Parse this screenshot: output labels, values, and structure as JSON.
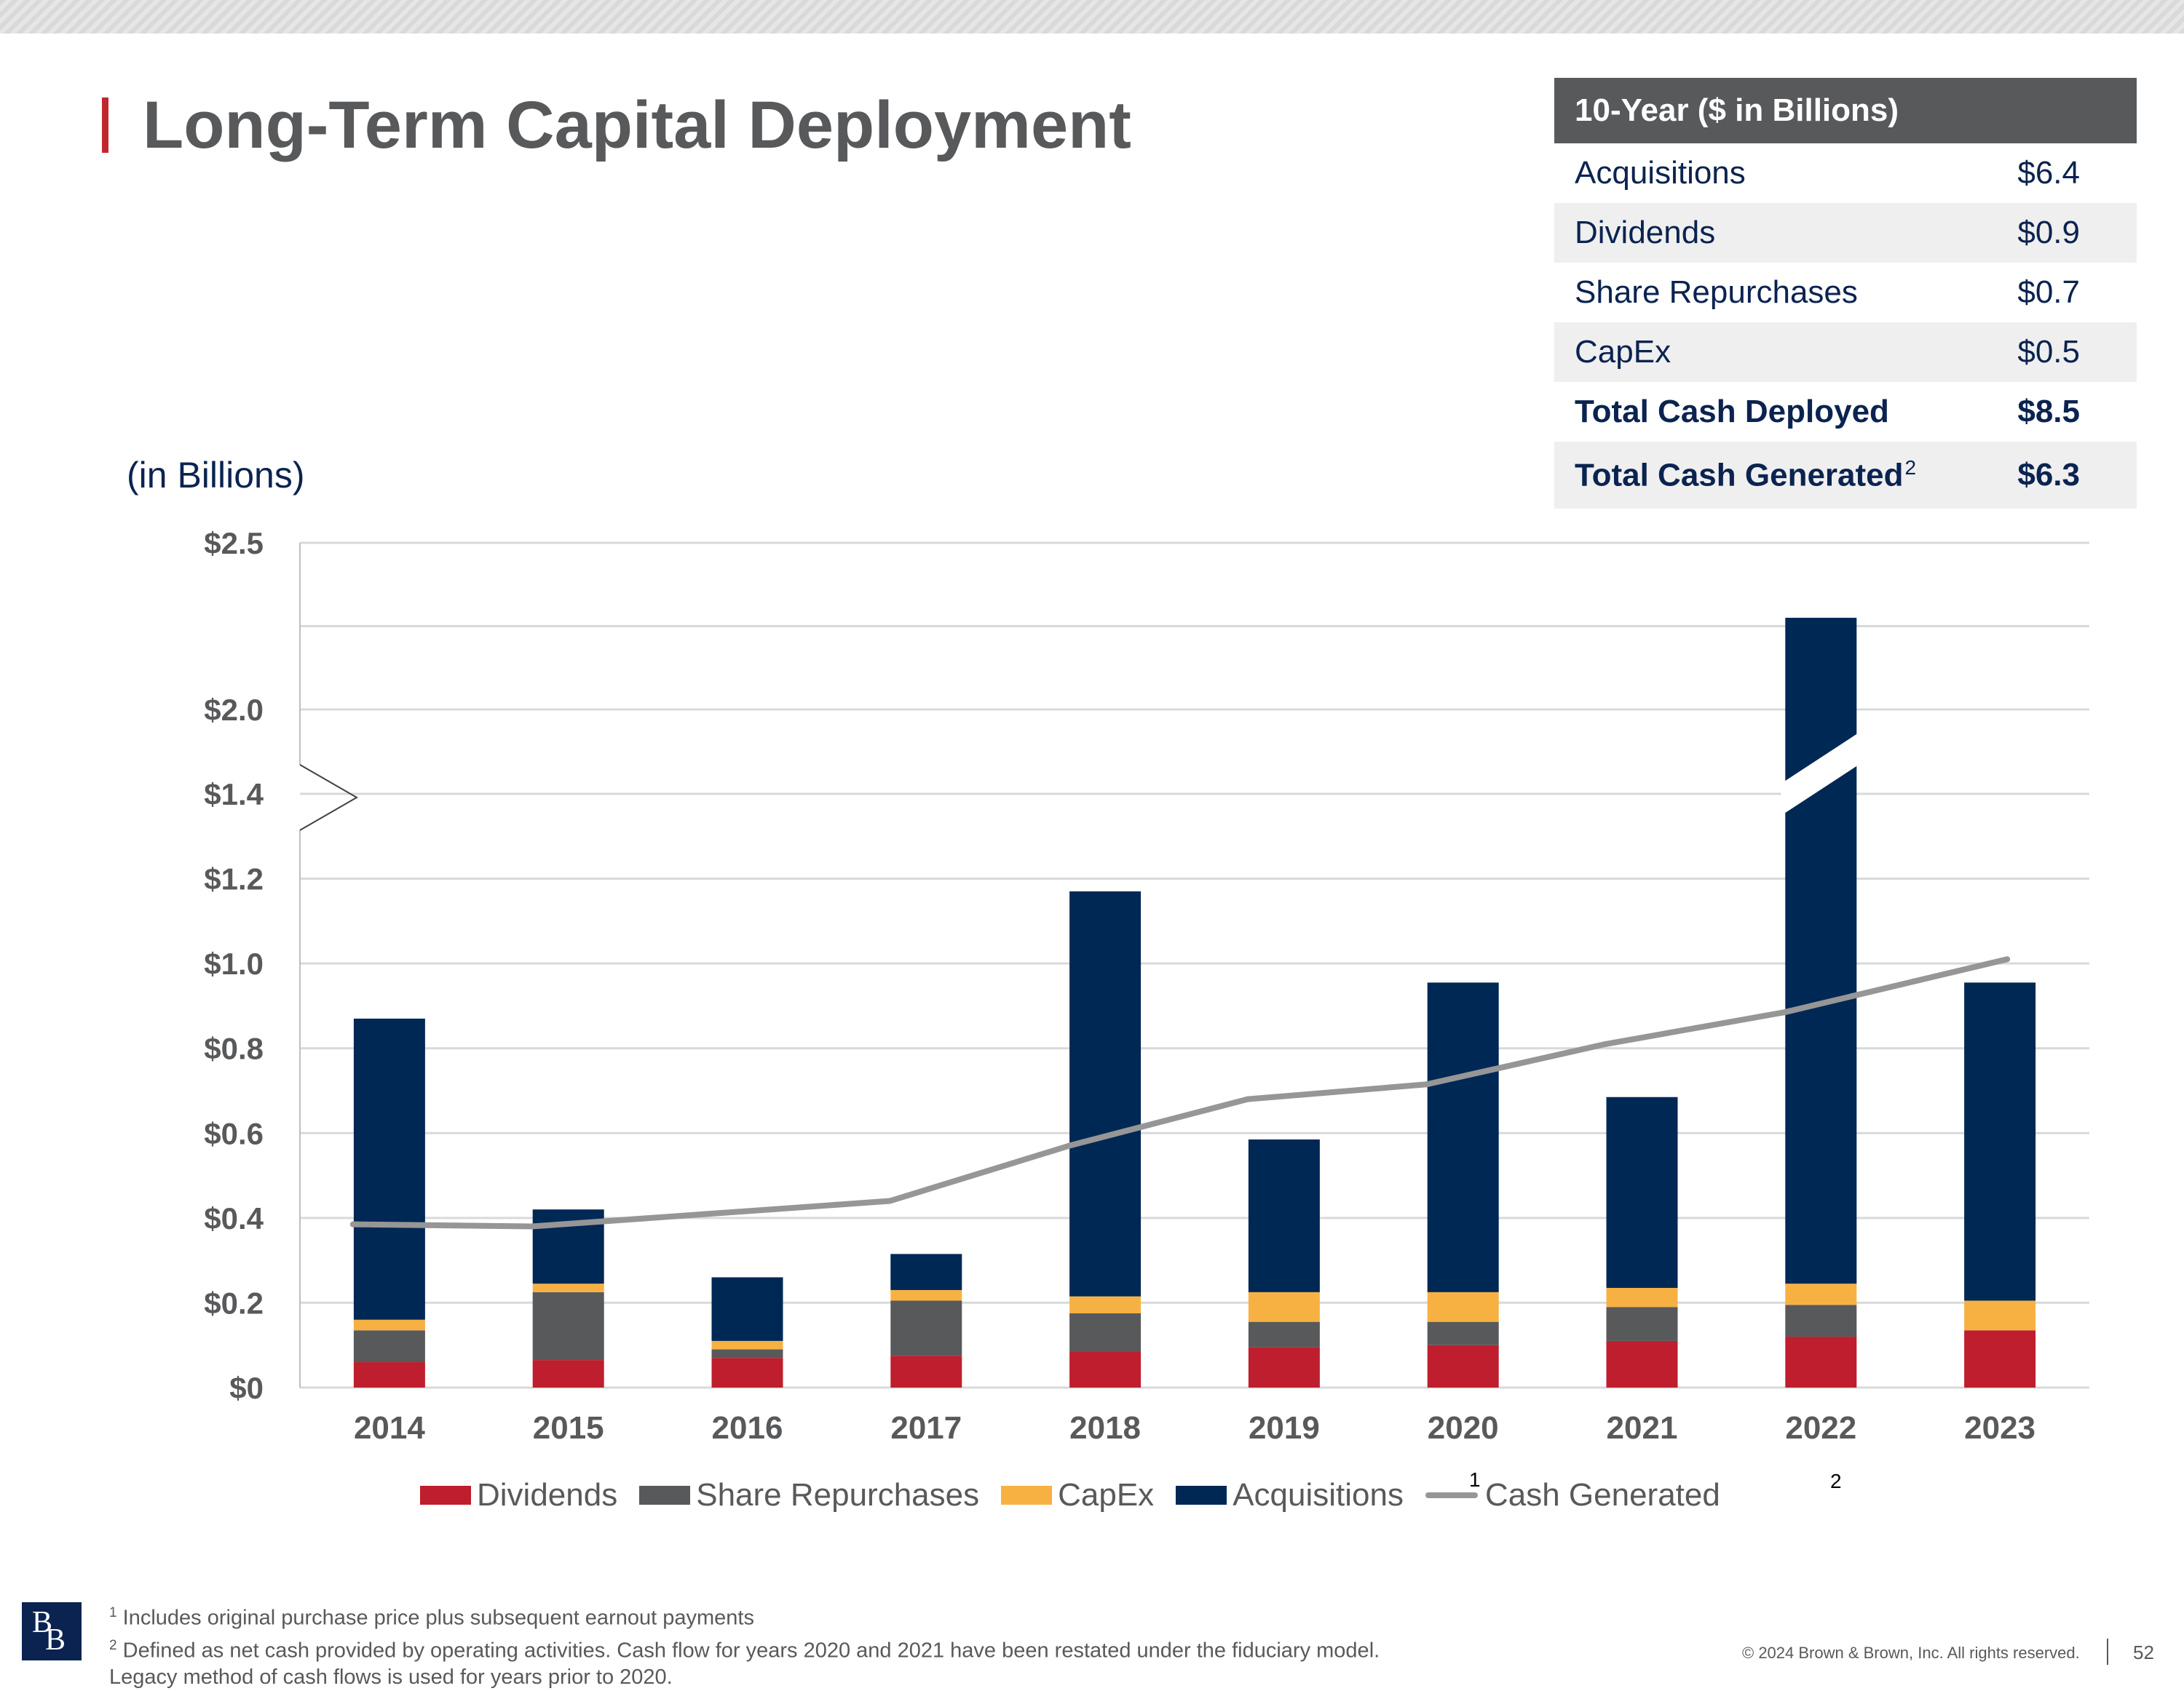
{
  "page": {
    "title": "Long-Term Capital Deployment",
    "unit_label": "(in Billions)",
    "page_number": "52",
    "copyright": "© 2024 Brown & Brown, Inc. All rights reserved.",
    "logo_letters": [
      "B",
      "B"
    ],
    "footnote_1_mark": "1",
    "footnote_2_mark": "2",
    "footnote_1": "Includes original purchase price plus subsequent earnout payments",
    "footnote_2_line1": "Defined as net cash provided by operating activities.  Cash flow for years 2020 and 2021 have been restated under the fiduciary model.",
    "footnote_2_line2": "Legacy method of cash flows is used for years prior to 2020."
  },
  "summary_table": {
    "header": "10-Year ($ in Billions)",
    "rows": [
      {
        "label": "Acquisitions",
        "value": "$6.4"
      },
      {
        "label": "Dividends",
        "value": "$0.9"
      },
      {
        "label": "Share Repurchases",
        "value": "$0.7"
      },
      {
        "label": "CapEx",
        "value": "$0.5"
      },
      {
        "label": "Total Cash Deployed",
        "value": "$8.5"
      },
      {
        "label": "Total Cash Generated",
        "value": "$6.3",
        "footnote": "2"
      }
    ]
  },
  "legend": {
    "dividends": "Dividends",
    "share_repurchases": "Share Repurchases",
    "capex": "CapEx",
    "acquisitions": "Acquisitions",
    "cash_generated": "Cash Generated",
    "acquisitions_note": "1",
    "cash_generated_note": "2"
  },
  "colors": {
    "dividends": "#be1e2d",
    "share_repurchases": "#58595b",
    "capex": "#f7b143",
    "acquisitions": "#002855",
    "cash_generated": "#969696",
    "navy_text": "#0b2350",
    "accent_red": "#c1272d"
  },
  "chart_data": {
    "type": "bar",
    "stacked": true,
    "title": "",
    "ylabel": "(in Billions)",
    "xlabel": "",
    "y_axis_break": {
      "from": 1.4,
      "to": 2.0
    },
    "y_ticks": [
      "$0",
      "$0.2",
      "$0.4",
      "$0.6",
      "$0.8",
      "$1.0",
      "$1.2",
      "$1.4",
      "$2.0",
      "$2.5"
    ],
    "y_tick_values": [
      0,
      0.2,
      0.4,
      0.6,
      0.8,
      1.0,
      1.2,
      1.4,
      2.0,
      2.5
    ],
    "categories": [
      "2014",
      "2015",
      "2016",
      "2017",
      "2018",
      "2019",
      "2020",
      "2021",
      "2022",
      "2023"
    ],
    "series": [
      {
        "name": "Dividends",
        "values": [
          0.06,
          0.065,
          0.07,
          0.075,
          0.085,
          0.095,
          0.1,
          0.11,
          0.12,
          0.135
        ]
      },
      {
        "name": "Share Repurchases",
        "values": [
          0.075,
          0.16,
          0.02,
          0.13,
          0.09,
          0.06,
          0.055,
          0.08,
          0.075,
          0.0
        ]
      },
      {
        "name": "CapEx",
        "values": [
          0.025,
          0.02,
          0.02,
          0.025,
          0.04,
          0.07,
          0.07,
          0.045,
          0.05,
          0.07
        ]
      },
      {
        "name": "Acquisitions",
        "values": [
          0.71,
          0.175,
          0.15,
          0.085,
          0.955,
          0.36,
          0.73,
          0.45,
          2.03,
          0.75
        ]
      }
    ],
    "line_series": {
      "name": "Cash Generated",
      "values": [
        0.385,
        0.38,
        0.41,
        0.44,
        0.57,
        0.68,
        0.715,
        0.81,
        0.885,
        1.01
      ]
    },
    "broken_bars": [
      "2022"
    ],
    "legend_position": "bottom"
  }
}
